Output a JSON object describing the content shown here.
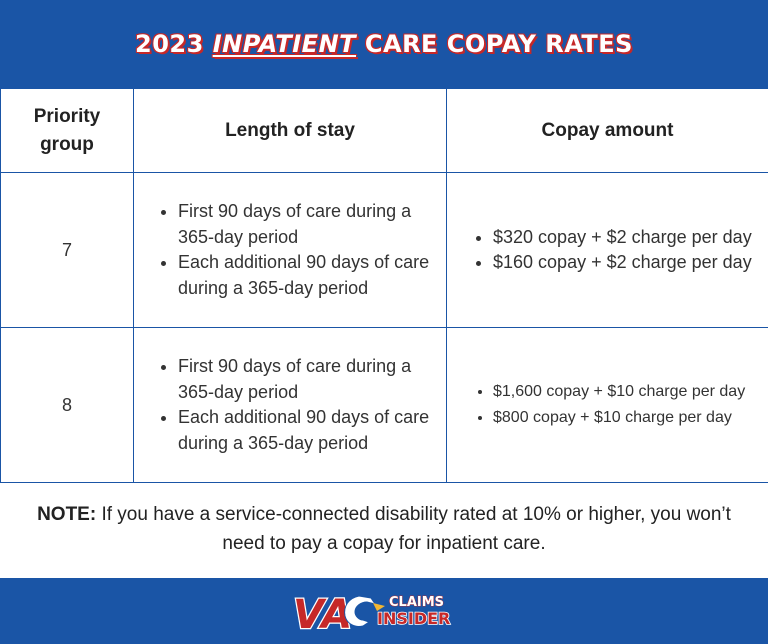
{
  "header": {
    "title_pre": "2023 ",
    "title_emph": "INPATIENT",
    "title_post": " CARE COPAY RATES"
  },
  "table": {
    "columns": [
      "Priority group",
      "Length of stay",
      "Copay amount"
    ],
    "rows": [
      {
        "group": "7",
        "stay": [
          "First 90 days of care during a 365-day period",
          "Each additional 90 days of care during a 365-day period"
        ],
        "copay": [
          "$320 copay + $2 charge per day",
          "$160 copay + $2 charge per day"
        ]
      },
      {
        "group": "8",
        "stay": [
          "First 90 days of care during a 365-day period",
          "Each additional 90 days of care during a 365-day period"
        ],
        "copay": [
          "$1,600 copay + $10 charge per day",
          "$800 copay + $10 charge per day"
        ]
      }
    ]
  },
  "note": {
    "label": "NOTE:",
    "text": " If you have a service-connected disability rated at 10% or higher, you won’t need to pay a copay for inpatient care."
  },
  "footer": {
    "logo_icon": "eagle-icon",
    "logo_va": "VA",
    "logo_claims": "CLAIMS",
    "logo_insider": "INSIDER"
  },
  "colors": {
    "brand_blue": "#1a55a6",
    "brand_red": "#c62828"
  }
}
